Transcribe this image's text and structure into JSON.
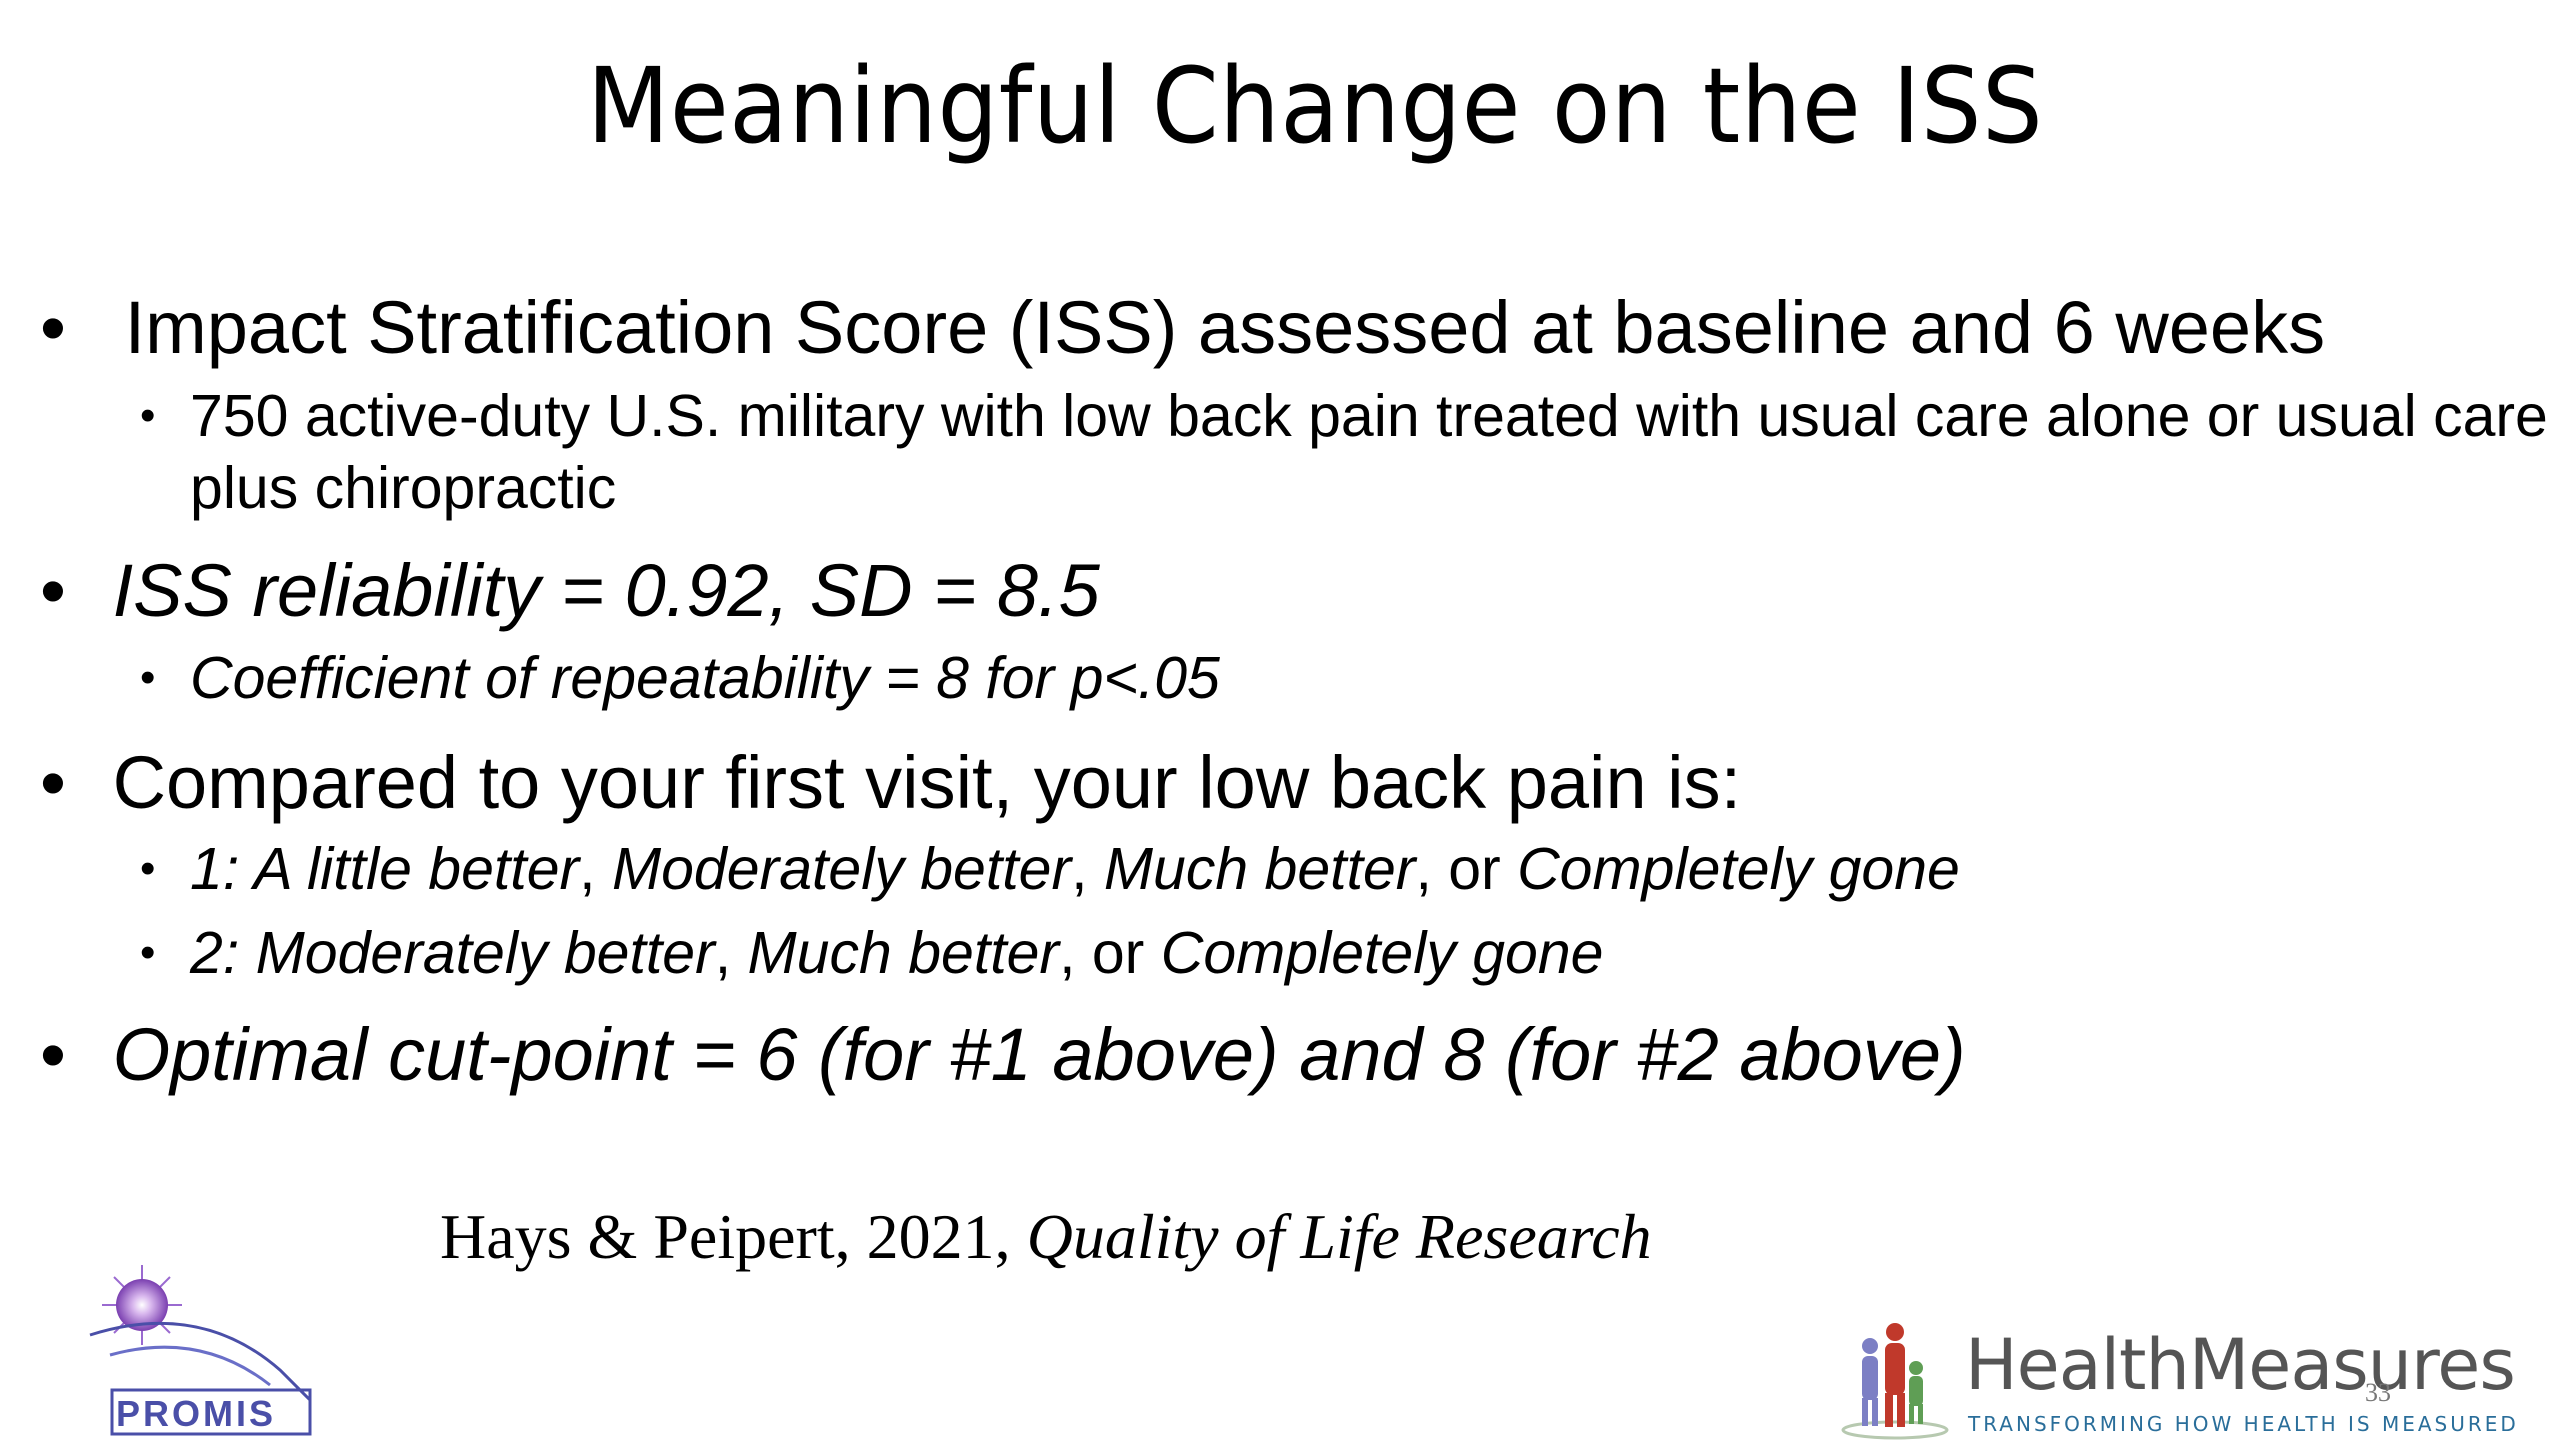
{
  "slide": {
    "title": "Meaningful Change on the ISS",
    "bullets": [
      {
        "text": "Impact Stratification Score (ISS) assessed at baseline and 6 weeks",
        "sub": [
          "750 active-duty U.S. military with low back pain treated with usual care alone or usual care plus chiropractic"
        ]
      },
      {
        "text": "ISS reliability = 0.92, SD = 8.5",
        "sub": [
          "Coefficient of repeatability = 8 for p<.05"
        ]
      },
      {
        "text": "Compared to your first visit, your low back pain is:",
        "sub": [
          {
            "prefix": "1: ",
            "a": "A little better",
            "sep1": ", ",
            "b": "Moderately better",
            "sep2": ", ",
            "c": "Much better",
            "or": ", or ",
            "d": "Completely gone"
          },
          {
            "prefix": "2: ",
            "a": "Moderately better",
            "sep1": ", ",
            "b": "Much better",
            "or": ", or ",
            "d": "Completely gone"
          }
        ]
      },
      {
        "text": "Optimal cut-point = 6 (for #1 above) and 8 (for #2 above)"
      }
    ],
    "bullet_glyph": "•",
    "citation": {
      "authors": "Hays & Peipert, 2021, ",
      "journal": "Quality of Life Research"
    },
    "slide_number": "33"
  },
  "logos": {
    "promis": {
      "label": "PROMIS",
      "color": "#4a4fa8"
    },
    "healthmeasures": {
      "name": "HealthMeasures",
      "tagline": "TRANSFORMING HOW HEALTH IS MEASURED"
    }
  }
}
